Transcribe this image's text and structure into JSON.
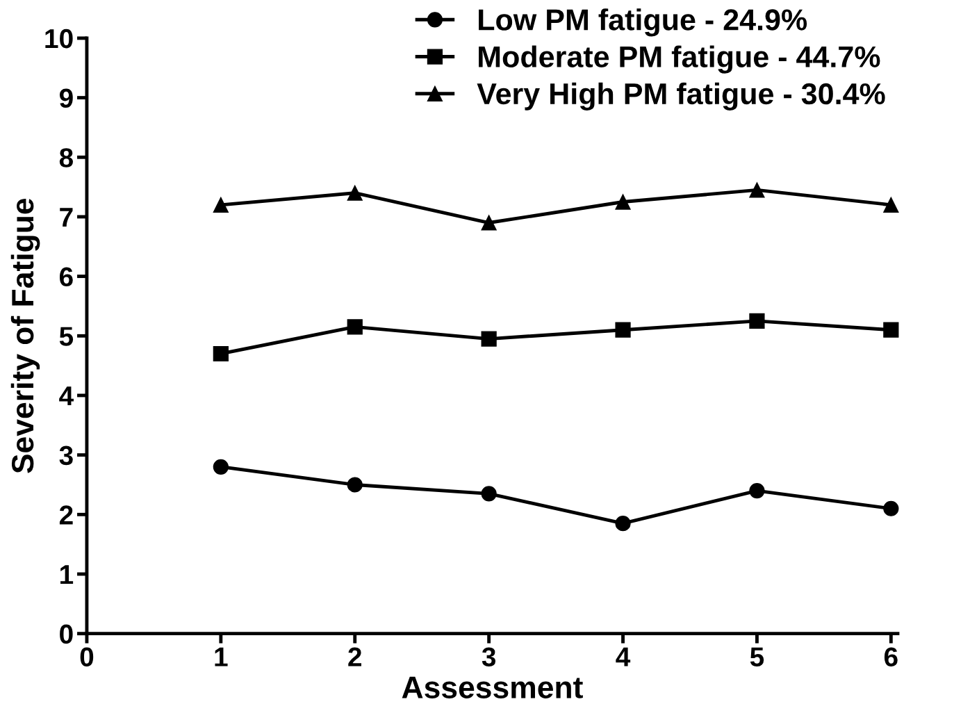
{
  "chart_data": {
    "type": "line",
    "xlabel": "Assessment",
    "ylabel": "Severity of Fatigue",
    "x": [
      1,
      2,
      3,
      4,
      5,
      6
    ],
    "series": [
      {
        "name": "Low PM fatigue - 24.9%",
        "color": "#000000",
        "marker": "circle",
        "values": [
          2.8,
          2.5,
          2.35,
          1.85,
          2.4,
          2.1
        ]
      },
      {
        "name": "Moderate PM fatigue - 44.7%",
        "color": "#000000",
        "marker": "square",
        "values": [
          4.7,
          5.15,
          4.95,
          5.1,
          5.25,
          5.1
        ]
      },
      {
        "name": "Very High PM fatigue - 30.4%",
        "color": "#000000",
        "marker": "triangle",
        "values": [
          7.2,
          7.4,
          6.9,
          7.25,
          7.45,
          7.2
        ]
      }
    ],
    "xlim": [
      0,
      6.05
    ],
    "xticks": [
      0,
      1,
      2,
      3,
      4,
      5,
      6
    ],
    "ylim": [
      0,
      10
    ],
    "yticks": [
      0,
      1,
      2,
      3,
      4,
      5,
      6,
      7,
      8,
      9,
      10
    ],
    "grid": false,
    "legend": "top right",
    "line_style": "solid"
  }
}
